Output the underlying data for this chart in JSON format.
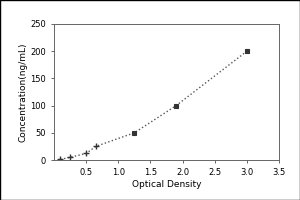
{
  "x_data": [
    0.1,
    0.25,
    0.5,
    0.65,
    1.25,
    1.9,
    3.0
  ],
  "y_data": [
    1,
    5,
    12,
    25,
    50,
    100,
    200
  ],
  "xlabel": "Optical Density",
  "ylabel": "Concentration(ng/mL)",
  "xlim": [
    0,
    3.5
  ],
  "ylim": [
    0,
    250
  ],
  "xticks": [
    0.5,
    1.0,
    1.5,
    2.0,
    2.5,
    3.0,
    3.5
  ],
  "yticks": [
    0,
    50,
    100,
    150,
    200,
    250
  ],
  "line_color": "#555555",
  "marker_color": "#333333",
  "background_color": "#ffffff",
  "outer_background": "#e8e8e8",
  "line_style": "dotted",
  "label_fontsize": 6.5,
  "tick_fontsize": 6
}
